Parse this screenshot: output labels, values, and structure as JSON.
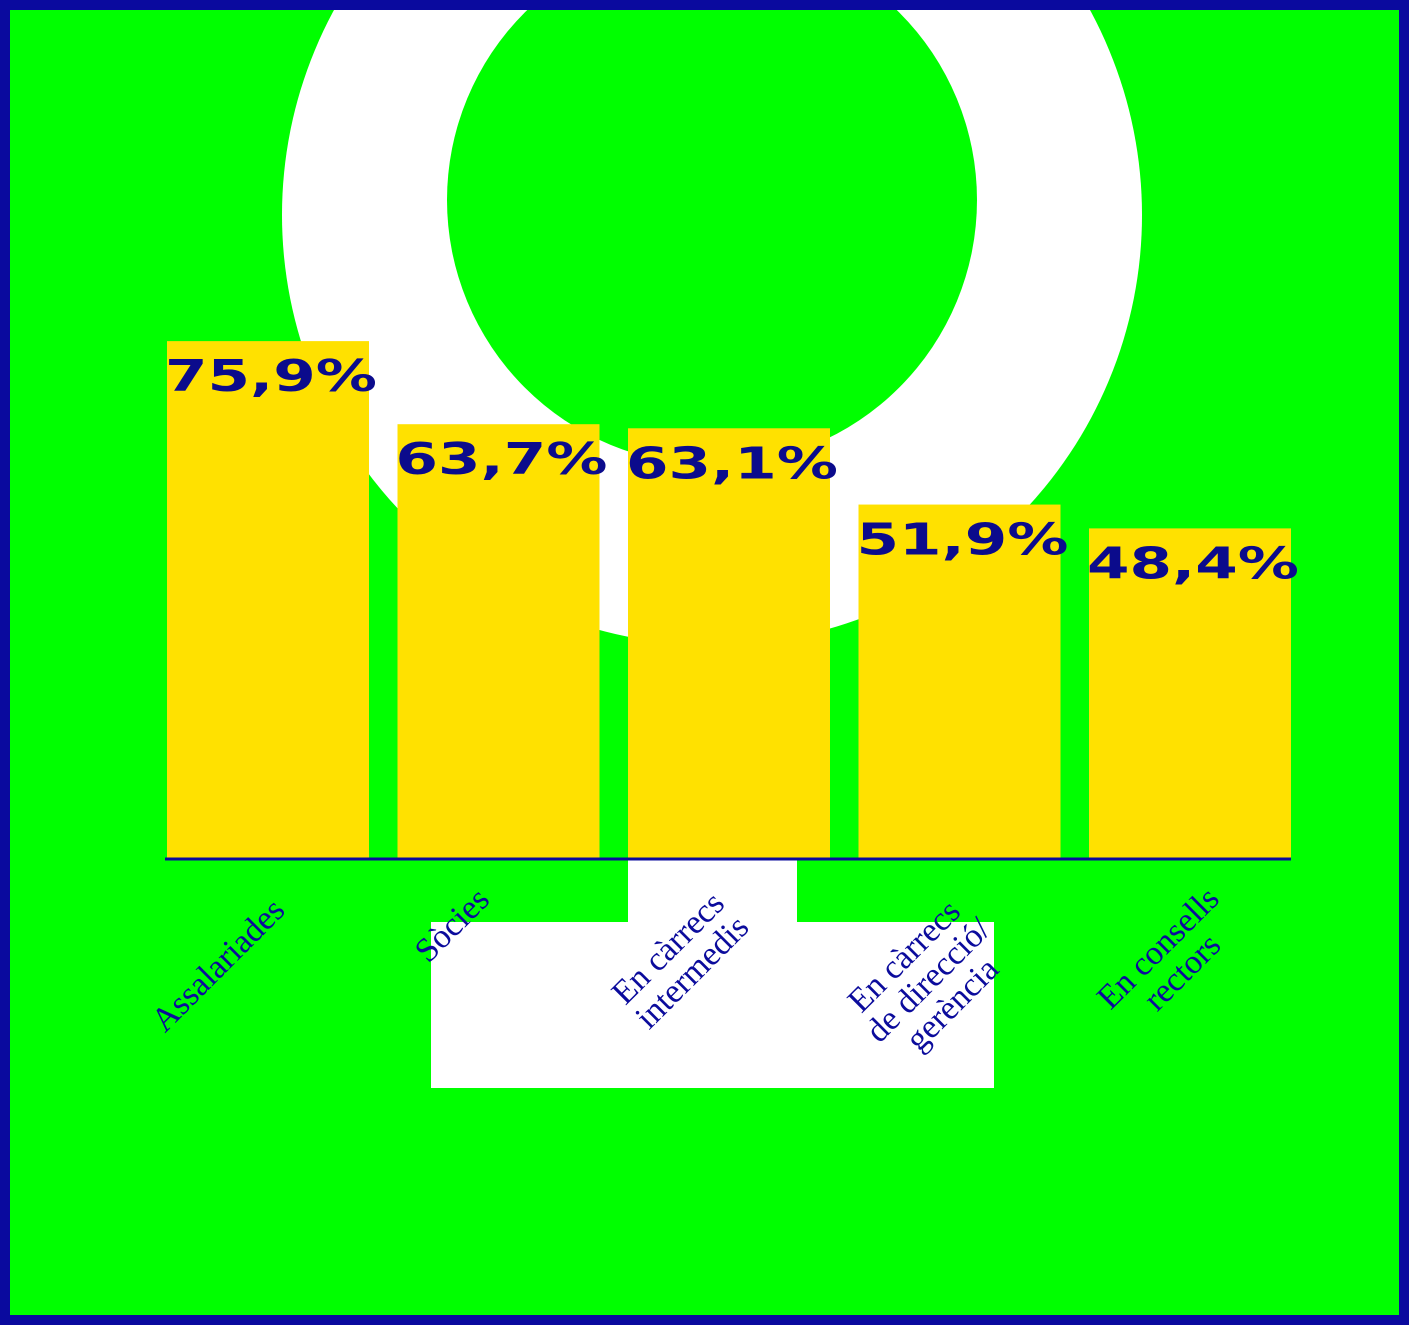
{
  "chart_data": {
    "type": "bar",
    "categories": [
      [
        "Assalariades"
      ],
      [
        "Sòcies"
      ],
      [
        "En càrrecs",
        "intermedis"
      ],
      [
        "En càrrecs",
        "de direcció/",
        "gerència"
      ],
      [
        "En consells",
        "rectors"
      ]
    ],
    "values": [
      75.9,
      63.7,
      63.1,
      51.9,
      48.4
    ],
    "value_labels": [
      "75,9%",
      "63,7%",
      "63,1%",
      "51,9%",
      "48,4%"
    ],
    "color": "#ffe100"
  }
}
